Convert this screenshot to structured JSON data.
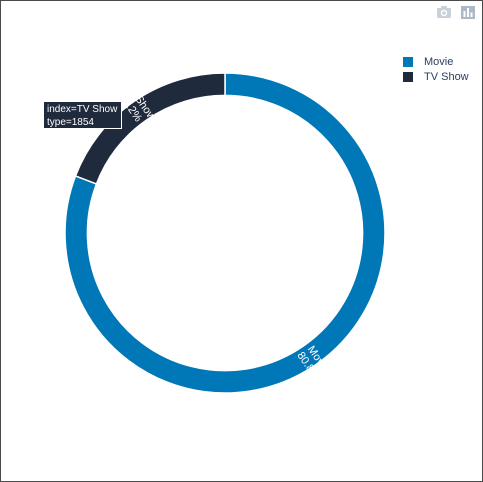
{
  "colors": {
    "movie": "#0077b6",
    "tv_show": "#1f2a3d",
    "label_text": "#ffffff",
    "legend_text": "#2a3f5f",
    "modebar_icon": "#c9d0d9"
  },
  "modebar": {
    "icons": [
      "camera-icon",
      "bar-chart-icon"
    ]
  },
  "chart_data": {
    "type": "pie",
    "hole": 0.86,
    "labels": [
      "Movie",
      "TV Show"
    ],
    "percents": [
      "80.8%",
      "19.2%"
    ],
    "values": [
      0.808,
      0.192
    ],
    "legend_position": "top-right"
  },
  "tooltip": {
    "line1": "index=TV Show",
    "line2": "type=1854"
  }
}
